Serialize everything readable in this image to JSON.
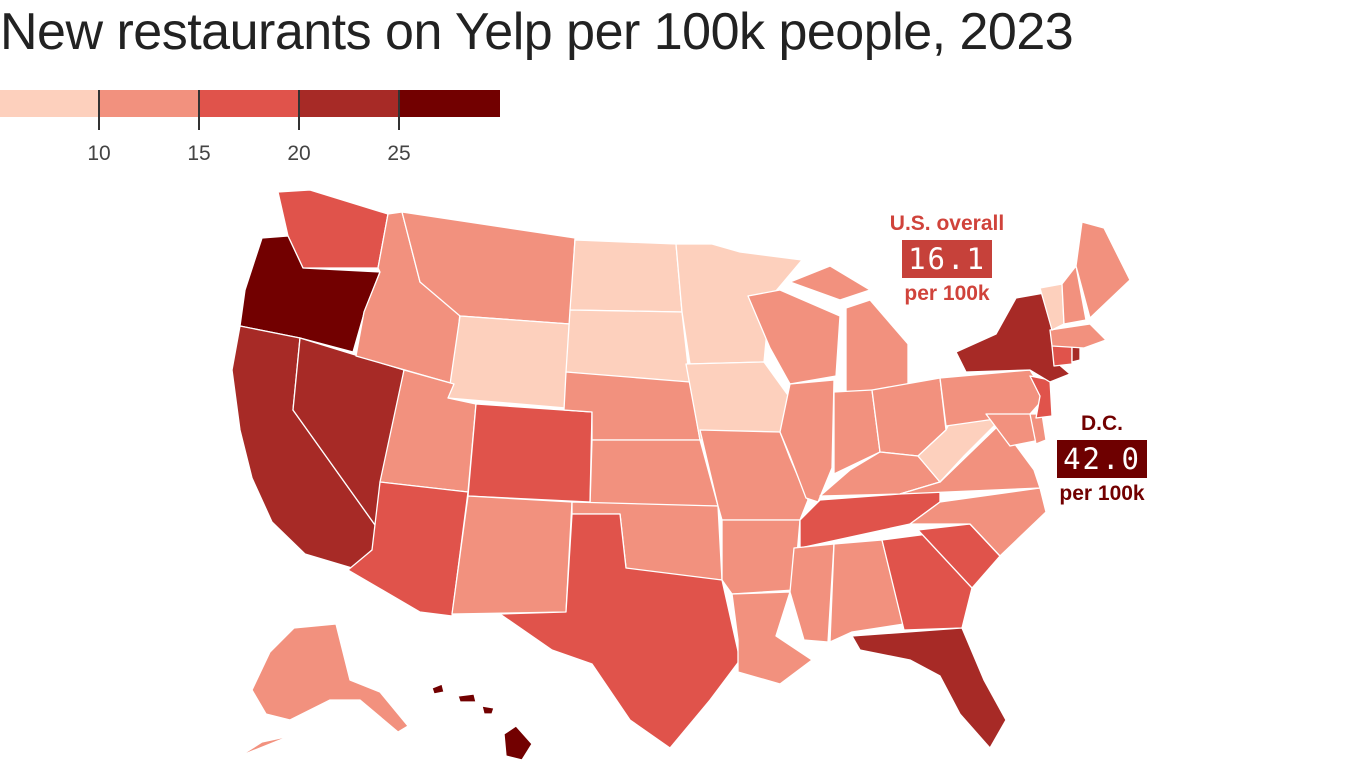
{
  "title": "New restaurants on Yelp per 100k people, 2023",
  "legend": {
    "bins": [
      {
        "max": 10,
        "color": "#fdd0bd"
      },
      {
        "min": 10,
        "max": 15,
        "color": "#f2917e"
      },
      {
        "min": 15,
        "max": 20,
        "color": "#e0534b"
      },
      {
        "min": 20,
        "max": 25,
        "color": "#a72a26"
      },
      {
        "min": 25,
        "color": "#720000"
      }
    ],
    "ticks": [
      "10",
      "15",
      "20",
      "25"
    ]
  },
  "callouts": {
    "us": {
      "label": "U.S. overall",
      "value": "16.1",
      "unit": "per 100k"
    },
    "dc": {
      "label": "D.C.",
      "value": "42.0",
      "unit": "per 100k"
    }
  },
  "states": {
    "WA": "#e0534b",
    "OR": "#720000",
    "CA": "#a72a26",
    "NV": "#a72a26",
    "ID": "#f2917e",
    "MT": "#f2917e",
    "WY": "#fdd0bd",
    "UT": "#f2917e",
    "AZ": "#e0534b",
    "CO": "#e0534b",
    "NM": "#f2917e",
    "ND": "#fdd0bd",
    "SD": "#fdd0bd",
    "NE": "#f2917e",
    "KS": "#f2917e",
    "OK": "#f2917e",
    "TX": "#e0534b",
    "MN": "#fdd0bd",
    "IA": "#fdd0bd",
    "MO": "#f2917e",
    "AR": "#f2917e",
    "LA": "#f2917e",
    "WI": "#f2917e",
    "IL": "#f2917e",
    "MI": "#f2917e",
    "IN": "#f2917e",
    "OH": "#f2917e",
    "KY": "#f2917e",
    "TN": "#e0534b",
    "MS": "#f2917e",
    "AL": "#f2917e",
    "GA": "#e0534b",
    "FL": "#a72a26",
    "SC": "#e0534b",
    "NC": "#f2917e",
    "VA": "#f2917e",
    "WV": "#fdd0bd",
    "PA": "#f2917e",
    "NY": "#a72a26",
    "NJ": "#e0534b",
    "DE": "#f2917e",
    "MD": "#f2917e",
    "CT": "#e0534b",
    "RI": "#a72a26",
    "MA": "#f2917e",
    "VT": "#fdd0bd",
    "NH": "#f2917e",
    "ME": "#f2917e",
    "AK": "#f2917e",
    "HI": "#720000"
  }
}
